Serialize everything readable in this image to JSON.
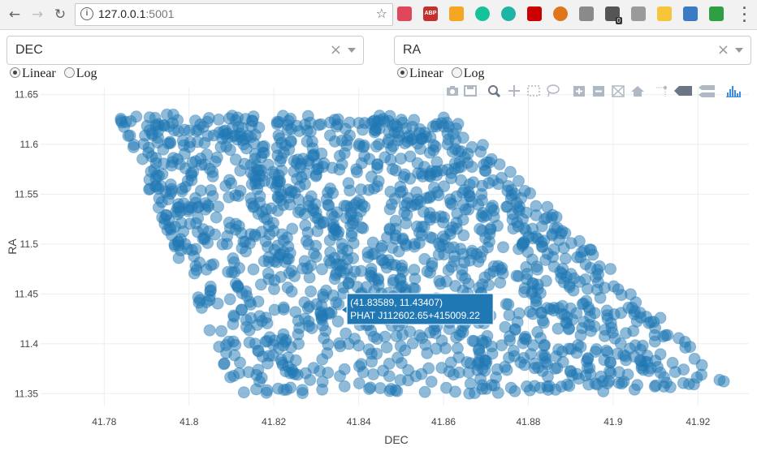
{
  "browser": {
    "url_host": "127.0.0.1",
    "url_port": ":5001",
    "back_icon": "arrow-left-icon",
    "forward_icon": "arrow-right-icon",
    "reload_icon": "reload-icon",
    "info_icon": "info-icon",
    "star_icon": "star-icon",
    "extensions": [
      {
        "name": "pocket-extension-icon",
        "color": "#e0475b"
      },
      {
        "name": "adblock-extension-icon",
        "color": "#c4302b",
        "text": "ABP"
      },
      {
        "name": "key-extension-icon",
        "color": "#f5a623"
      },
      {
        "name": "grammarly-extension-icon",
        "color": "#15c39a"
      },
      {
        "name": "m-extension-icon",
        "color": "#1fb5a6"
      },
      {
        "name": "play-extension-icon",
        "color": "#cc0000"
      },
      {
        "name": "ball-extension-icon",
        "color": "#e0761b"
      },
      {
        "name": "bug-extension-icon",
        "color": "#8a8a8a"
      },
      {
        "name": "ghost-extension-icon",
        "color": "#555555",
        "badge": "0"
      },
      {
        "name": "spark-extension-icon",
        "color": "#9a9a9a"
      },
      {
        "name": "tux-extension-icon",
        "color": "#f7c53a"
      },
      {
        "name": "s-extension-icon",
        "color": "#3b7ac4"
      },
      {
        "name": "check-extension-icon",
        "color": "#2ea043"
      }
    ]
  },
  "controls": {
    "x_dropdown": {
      "value": "DEC"
    },
    "y_dropdown": {
      "value": "RA"
    },
    "x_scale": {
      "options": [
        "Linear",
        "Log"
      ],
      "selected": "Linear"
    },
    "y_scale": {
      "options": [
        "Linear",
        "Log"
      ],
      "selected": "Linear"
    },
    "clear_symbol": "×"
  },
  "modebar": {
    "icons": [
      "camera-icon",
      "save-icon",
      "zoom-icon",
      "pan-icon",
      "box-select-icon",
      "lasso-select-icon",
      "zoom-in-icon",
      "zoom-out-icon",
      "autoscale-icon",
      "home-icon",
      "spikelines-icon",
      "hover-closest-icon",
      "hover-compare-icon",
      "plotly-logo-icon"
    ]
  },
  "hover": {
    "line1": "(41.83589, 11.43407)",
    "line2": "PHAT J112602.65+415009.22",
    "x": 41.83589,
    "y": 11.43407
  },
  "chart_data": {
    "type": "scatter",
    "xlabel": "DEC",
    "ylabel": "RA",
    "xlim": [
      41.765,
      41.932
    ],
    "ylim": [
      11.338,
      11.657
    ],
    "xticks": [
      41.78,
      41.8,
      41.82,
      41.84,
      41.86,
      41.88,
      41.9,
      41.92
    ],
    "yticks": [
      11.35,
      11.4,
      11.45,
      11.5,
      11.55,
      11.6,
      11.65
    ],
    "xtick_labels": [
      "41.78",
      "41.8",
      "41.82",
      "41.84",
      "41.86",
      "41.88",
      "41.9",
      "41.92"
    ],
    "ytick_labels": [
      "11.35",
      "11.4",
      "11.45",
      "11.5",
      "11.55",
      "11.6",
      "11.65"
    ],
    "marker_color": "#1f77b4",
    "marker_opacity": 0.5,
    "grid": true,
    "region": {
      "description": "roughly 1500 points uniformly filling a parallelogram",
      "top_edge": {
        "y": 11.63,
        "x_from": 41.785,
        "x_to": 41.862
      },
      "bottom_edge": {
        "y": 11.35,
        "x_from": 41.81,
        "x_to": 41.924
      },
      "left_edge": [
        [
          41.785,
          11.61
        ],
        [
          41.81,
          11.36
        ]
      ],
      "right_edge": [
        [
          41.862,
          11.63
        ],
        [
          41.924,
          11.375
        ]
      ],
      "point_count": 1500
    }
  }
}
